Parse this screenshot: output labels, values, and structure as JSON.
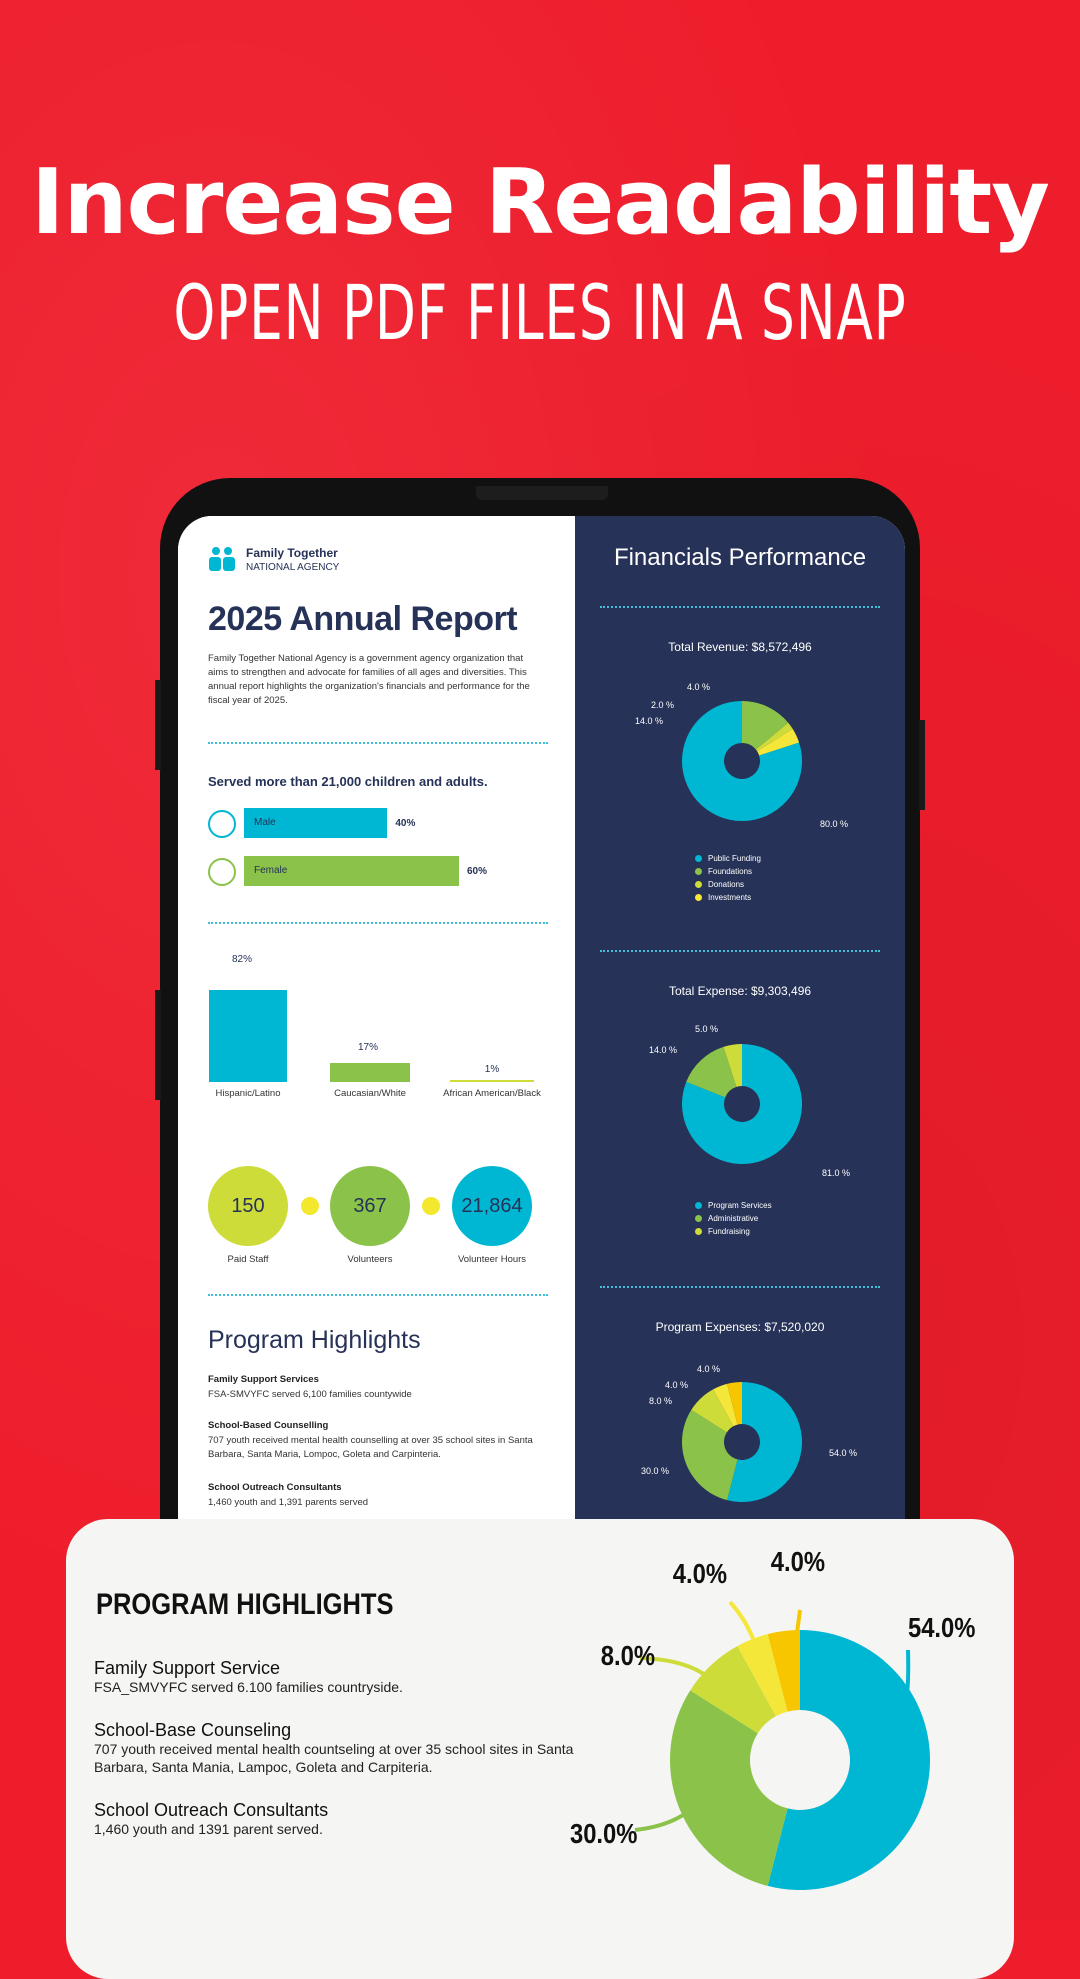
{
  "headline": {
    "title": "Increase Readability",
    "subtitle": "OPEN PDF FILES IN A SNAP"
  },
  "report": {
    "brand_line1": "Family Together",
    "brand_line2": "NATIONAL AGENCY",
    "title": "2025 Annual Report",
    "intro": "Family Together National Agency is a government agency organization that aims to strengthen and advocate for families of all ages and diversities. This annual report highlights the organization's financials and performance for the fiscal year of 2025.",
    "served": "Served more than 21,000 children and adults.",
    "gender": [
      {
        "label": "Male",
        "value": 40,
        "pct": "40%"
      },
      {
        "label": "Female",
        "value": 60,
        "pct": "60%"
      }
    ],
    "ethnicity": [
      {
        "label": "Hispanic/Latino",
        "value": 82,
        "pct": "82%"
      },
      {
        "label": "Caucasian/White",
        "value": 17,
        "pct": "17%"
      },
      {
        "label": "African American/Black",
        "value": 1,
        "pct": "1%"
      }
    ],
    "stats": [
      {
        "value": "150",
        "label": "Paid Staff"
      },
      {
        "value": "367",
        "label": "Volunteers"
      },
      {
        "value": "21,864",
        "label": "Volunteer Hours"
      }
    ],
    "program_title": "Program Highlights",
    "programs": [
      {
        "head": "Family Support Services",
        "text": "FSA-SMVYFC served 6,100 families countywide"
      },
      {
        "head": "School-Based Counselling",
        "text": "707 youth received mental health counselling at over 35 school sites in Santa Barbara, Santa Maria, Lompoc, Goleta and Carpinteria."
      },
      {
        "head": "School Outreach Consultants",
        "text": "1,460 youth and 1,391 parents served"
      }
    ]
  },
  "financials": {
    "title": "Financials Performance",
    "revenue_title": "Total Revenue: $8,572,496",
    "revenue_labels": [
      "80.0 %",
      "14.0 %",
      "2.0 %",
      "4.0 %"
    ],
    "revenue_legend": [
      "Public Funding",
      "Foundations",
      "Donations",
      "Investments"
    ],
    "expense_title": "Total Expense: $9,303,496",
    "expense_labels": [
      "81.0 %",
      "14.0 %",
      "5.0 %"
    ],
    "expense_legend": [
      "Program Services",
      "Administrative",
      "Fundraising"
    ],
    "program_exp_title": "Program Expenses: $7,520,020",
    "program_exp_labels": [
      "54.0 %",
      "30.0 %",
      "8.0 %",
      "4.0 %",
      "4.0 %"
    ]
  },
  "chart_data": [
    {
      "type": "pie",
      "title": "Total Revenue: $8,572,496",
      "categories": [
        "Public Funding",
        "Foundations",
        "Donations",
        "Investments"
      ],
      "values": [
        80.0,
        14.0,
        2.0,
        4.0
      ]
    },
    {
      "type": "pie",
      "title": "Total Expense: $9,303,496",
      "categories": [
        "Program Services",
        "Administrative",
        "Fundraising"
      ],
      "values": [
        81.0,
        14.0,
        5.0
      ]
    },
    {
      "type": "pie",
      "title": "Program Expenses: $7,520,020",
      "values": [
        54.0,
        30.0,
        8.0,
        4.0,
        4.0
      ]
    }
  ],
  "card": {
    "title": "PROGRAM HIGHLIGHTS",
    "items": [
      {
        "head": "Family Support Service",
        "text": "FSA_SMVYFC served 6.100 families countryside."
      },
      {
        "head": "School-Base Counseling",
        "text": "707 youth received mental health countseling at over 35 school sites in Santa Barbara, Santa Mania, Lampoc, Goleta and Carpiteria."
      },
      {
        "head": "School Outreach Consultants",
        "text": "1,460 youth and 1391 parent served."
      }
    ],
    "pct_labels": [
      "54.0%",
      "30.0%",
      "8.0%",
      "4.0%",
      "4.0%"
    ]
  },
  "colors": {
    "red": "#ee1d2c",
    "navy": "#263257",
    "teal": "#00b7d3",
    "green": "#8bc34a",
    "lime": "#cddc39",
    "yellow": "#f5e63a",
    "gold": "#f7c600"
  }
}
